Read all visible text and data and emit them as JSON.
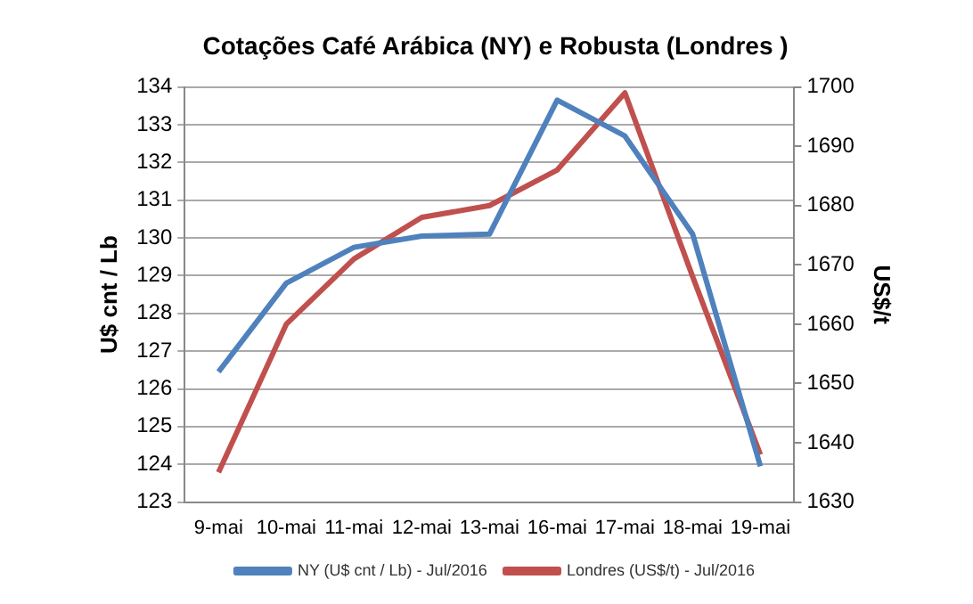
{
  "chart_data": {
    "type": "line",
    "title": "Cotações Café Arábica (NY) e Robusta (Londres )",
    "ylabel": "U$ cnt / Lb",
    "y2label": "US$/t",
    "categories": [
      "9-mai",
      "10-mai",
      "11-mai",
      "12-mai",
      "13-mai",
      "16-mai",
      "17-mai",
      "18-mai",
      "19-mai"
    ],
    "series": [
      {
        "name": "NY (U$ cnt / Lb) - Jul/2016",
        "color": "#4f81bd",
        "values": [
          126.45,
          128.8,
          129.75,
          130.05,
          130.1,
          133.65,
          132.7,
          130.1,
          123.95
        ]
      },
      {
        "name": "Londres (US$/t) - Jul/2016",
        "color": "#c0504d",
        "axis": "y2",
        "values": [
          1635,
          1660,
          1671,
          1678,
          1680,
          1686,
          1699,
          1668,
          1638
        ]
      }
    ],
    "ylim": [
      123,
      134
    ],
    "yticks": [
      123,
      124,
      125,
      126,
      127,
      128,
      129,
      130,
      131,
      132,
      133,
      134
    ],
    "y2lim": [
      1630,
      1700
    ],
    "y2ticks": [
      1630,
      1640,
      1650,
      1660,
      1670,
      1680,
      1690,
      1700
    ],
    "grid": "y",
    "legend": "bottom",
    "marker": "none",
    "line_style": "solid"
  }
}
